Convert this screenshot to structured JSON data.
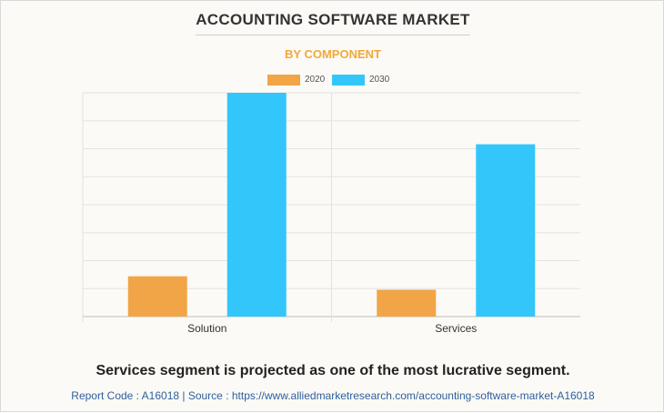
{
  "title": "ACCOUNTING SOFTWARE MARKET",
  "subtitle": "BY COMPONENT",
  "colors": {
    "subtitle": "#f2a93b",
    "series_2020": "#f2a546",
    "series_2030": "#33c6fb",
    "grid": "#e3e3e3",
    "axis": "#bdbdbd"
  },
  "chart_data": {
    "type": "bar",
    "categories": [
      "Solution",
      "Services"
    ],
    "series": [
      {
        "name": "2020",
        "values": [
          18,
          12
        ]
      },
      {
        "name": "2030",
        "values": [
          100,
          77
        ]
      }
    ],
    "ylim": [
      0,
      100
    ],
    "grid": true,
    "legend": "top-center",
    "xlabel": "",
    "ylabel": ""
  },
  "footer": {
    "statement": "Services segment is projected as one of the most lucrative segment.",
    "source": "Report Code : A16018  |  Source : https://www.alliedmarketresearch.com/accounting-software-market-A16018"
  }
}
